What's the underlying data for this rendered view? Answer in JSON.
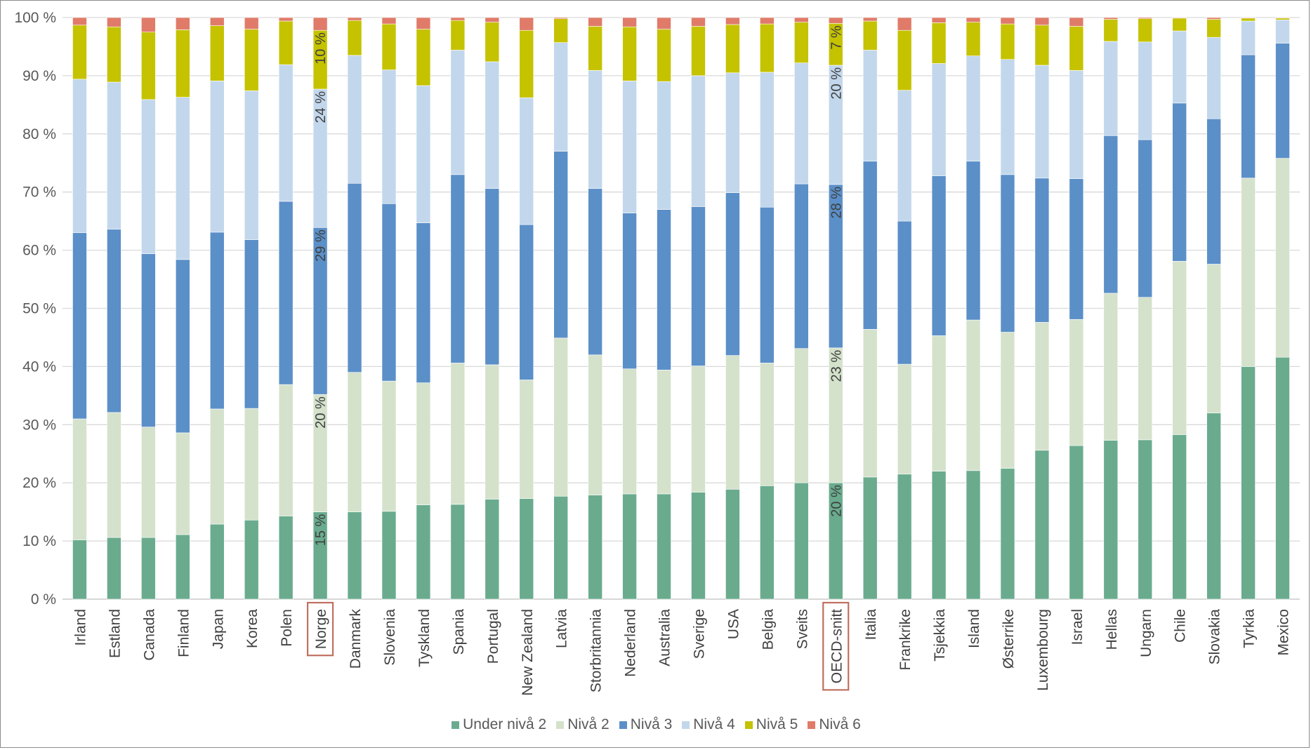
{
  "chart_data": {
    "type": "bar",
    "stacked": true,
    "title": "",
    "xlabel": "",
    "ylabel": "",
    "ylim": [
      0,
      100
    ],
    "yticks": [
      "0 %",
      "10 %",
      "20 %",
      "30 %",
      "40 %",
      "50 %",
      "60 %",
      "70 %",
      "80 %",
      "90 %",
      "100 %"
    ],
    "grid": true,
    "legend_position": "bottom",
    "categories": [
      "Irland",
      "Estland",
      "Canada",
      "Finland",
      "Japan",
      "Korea",
      "Polen",
      "Norge",
      "Danmark",
      "Slovenia",
      "Tyskland",
      "Spania",
      "Portugal",
      "New Zealand",
      "Latvia",
      "Storbritannia",
      "Nederland",
      "Australia",
      "Sverige",
      "USA",
      "Belgia",
      "Sveits",
      "OECD-snitt",
      "Italia",
      "Frankrike",
      "Tsjekkia",
      "Island",
      "Østerrike",
      "Luxembourg",
      "Israel",
      "Hellas",
      "Ungarn",
      "Chile",
      "Slovakia",
      "Tyrkia",
      "Mexico"
    ],
    "highlighted_categories": [
      "Norge",
      "OECD-snitt"
    ],
    "series": [
      {
        "name": "Under nivå 2",
        "color": "#6aab8e",
        "values": [
          10.2,
          10.6,
          10.6,
          11.1,
          12.9,
          13.6,
          14.3,
          15,
          15,
          15.1,
          16.2,
          16.3,
          17.2,
          17.3,
          17.7,
          17.9,
          18.1,
          18.1,
          18.4,
          18.9,
          19.5,
          20,
          20,
          21,
          21.5,
          22,
          22.1,
          22.5,
          25.6,
          26.4,
          27.3,
          27.4,
          28.3,
          32,
          40,
          41.6
        ]
      },
      {
        "name": "Nivå 2",
        "color": "#d4e2cc",
        "values": [
          20.8,
          21.5,
          19,
          17.5,
          19.8,
          19.2,
          22.6,
          20.2,
          24,
          22.4,
          21,
          24.3,
          23.1,
          20.4,
          27.2,
          24.1,
          21.5,
          21.3,
          21.7,
          23,
          21.1,
          23.1,
          23.2,
          25.4,
          18.9,
          23.3,
          25.9,
          23.4,
          22,
          21.7,
          25.3,
          24.5,
          29.8,
          25.6,
          32.4,
          34.2
        ]
      },
      {
        "name": "Nivå 3",
        "color": "#5b8fc8",
        "values": [
          32,
          31.5,
          29.8,
          29.8,
          30.4,
          29,
          31.5,
          28.7,
          32.5,
          30.5,
          27.5,
          32.4,
          30.3,
          26.7,
          32.1,
          28.6,
          26.8,
          27.6,
          27.4,
          28,
          26.8,
          28.3,
          28.1,
          28.9,
          24.6,
          27.5,
          27.3,
          27.1,
          24.8,
          24.2,
          27.1,
          27.1,
          27.2,
          25,
          21.2,
          19.8
        ]
      },
      {
        "name": "Nivå 4",
        "color": "#c2d7ec",
        "values": [
          26.4,
          25.3,
          26.5,
          27.9,
          26,
          25.6,
          23.5,
          23.8,
          22,
          23,
          23.6,
          21.4,
          21.8,
          21.8,
          18.7,
          20.3,
          22.7,
          22,
          22.5,
          20.6,
          23.2,
          20.8,
          20.5,
          19.1,
          22.5,
          19.3,
          18.1,
          19.8,
          19.4,
          18.6,
          16.2,
          16.8,
          12.4,
          14,
          5.8,
          4
        ]
      },
      {
        "name": "Nivå 5",
        "color": "#c5c200",
        "values": [
          9.3,
          9.5,
          11.6,
          11.6,
          9.5,
          10.6,
          7.5,
          10.1,
          6,
          7.9,
          9.7,
          5.1,
          6.8,
          11.6,
          4.1,
          7.6,
          9.3,
          9,
          8.5,
          8.3,
          8.3,
          7,
          7.2,
          5,
          10.3,
          7,
          5.8,
          6.1,
          6.9,
          7.6,
          3.8,
          4,
          2.2,
          3.1,
          0.5,
          0.3
        ]
      },
      {
        "name": "Nivå 6",
        "color": "#e07b6a",
        "values": [
          1.3,
          1.6,
          2.5,
          2.1,
          1.4,
          2,
          0.6,
          2.2,
          0.5,
          1.1,
          2,
          0.5,
          0.8,
          2.2,
          0.2,
          1.5,
          1.6,
          2,
          1.5,
          1.2,
          1.1,
          0.8,
          1,
          0.6,
          2.2,
          0.9,
          0.8,
          1.1,
          1.3,
          1.5,
          0.3,
          0.2,
          0.1,
          0.3,
          0.1,
          0.1
        ]
      }
    ],
    "data_labels": [
      {
        "category": "Norge",
        "series": "Under nivå 2",
        "text": "15 %"
      },
      {
        "category": "Norge",
        "series": "Nivå 2",
        "text": "20 %"
      },
      {
        "category": "Norge",
        "series": "Nivå 3",
        "text": "29 %"
      },
      {
        "category": "Norge",
        "series": "Nivå 4",
        "text": "24 %"
      },
      {
        "category": "Norge",
        "series": "Nivå 5",
        "text": "10 %"
      },
      {
        "category": "OECD-snitt",
        "series": "Under nivå 2",
        "text": "20 %"
      },
      {
        "category": "OECD-snitt",
        "series": "Nivå 2",
        "text": "23 %"
      },
      {
        "category": "OECD-snitt",
        "series": "Nivå 3",
        "text": "28 %"
      },
      {
        "category": "OECD-snitt",
        "series": "Nivå 4",
        "text": "20 %"
      },
      {
        "category": "OECD-snitt",
        "series": "Nivå 5",
        "text": "7 %"
      }
    ]
  },
  "colors": {
    "highlight_box": "#c0705e",
    "gridline": "#d9d9d9",
    "axis": "#bfbfbf"
  }
}
